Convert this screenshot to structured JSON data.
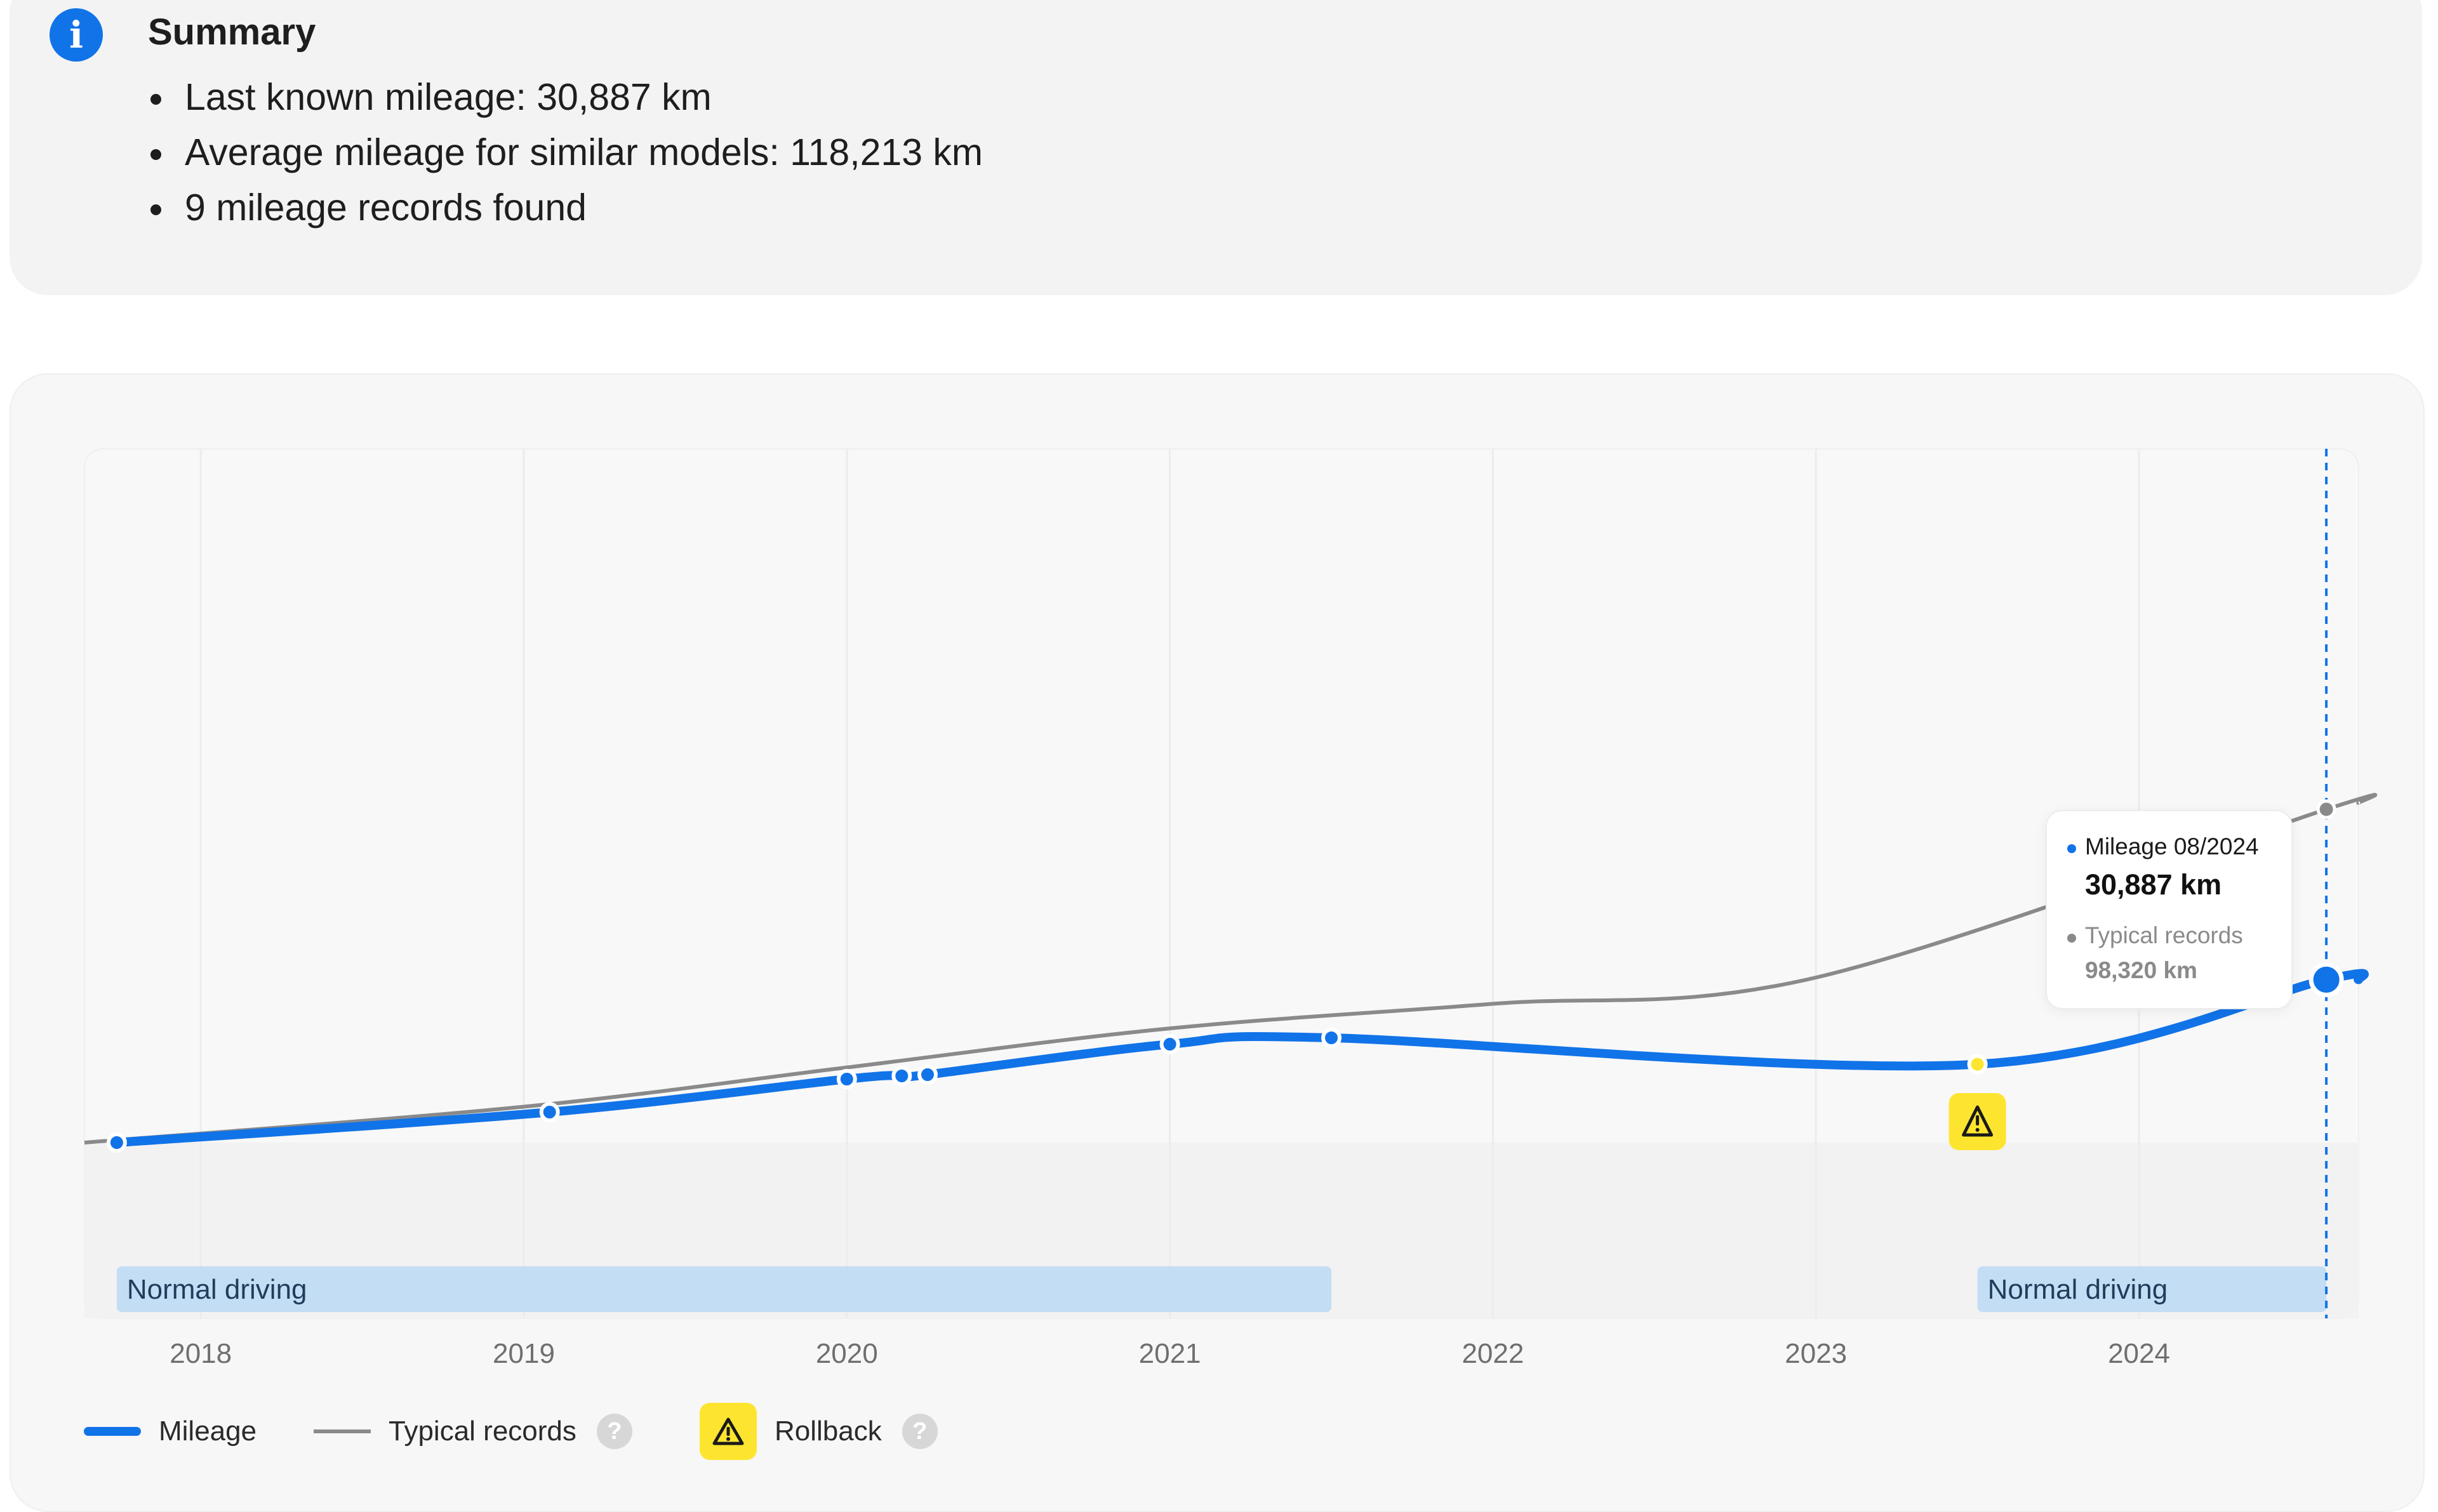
{
  "summary": {
    "title": "Summary",
    "items": [
      "Last known mileage: 30,887 km",
      "Average mileage for similar models: 118,213 km",
      "9 mileage records found"
    ],
    "icon": "info-icon"
  },
  "colors": {
    "mileage": "#1173e8",
    "typical": "#8a8a8a",
    "rollback": "#fde52f",
    "band": "#c3ddf5"
  },
  "chart_data": {
    "type": "line",
    "x_ticks": [
      "2018",
      "2019",
      "2020",
      "2021",
      "2022",
      "2023",
      "2024"
    ],
    "x_range": [
      2017.64,
      2024.68
    ],
    "y_range": [
      0,
      120000
    ],
    "series": [
      {
        "name": "Mileage",
        "points": [
          {
            "x": 2017.74,
            "y": 0
          },
          {
            "x": 2019.08,
            "y": 4200
          },
          {
            "x": 2020.0,
            "y": 9100
          },
          {
            "x": 2020.17,
            "y": 9500
          },
          {
            "x": 2020.25,
            "y": 9700
          },
          {
            "x": 2021.0,
            "y": 13500
          },
          {
            "x": 2021.5,
            "y": 14300
          },
          {
            "x": 2023.5,
            "y": 11000,
            "rollback": true
          },
          {
            "x": 2024.58,
            "y": 30887
          }
        ]
      },
      {
        "name": "Typical records",
        "points": [
          {
            "x": 2017.64,
            "y": 0
          },
          {
            "x": 2019.0,
            "y": 5000
          },
          {
            "x": 2020.0,
            "y": 10600
          },
          {
            "x": 2021.0,
            "y": 17000
          },
          {
            "x": 2022.0,
            "y": 24000
          },
          {
            "x": 2023.0,
            "y": 31500
          },
          {
            "x": 2024.58,
            "y": 98320
          },
          {
            "x": 2024.68,
            "y": 99500
          }
        ]
      }
    ],
    "bands": [
      {
        "label": "Normal driving",
        "x_start": 2017.74,
        "x_end": 2021.5
      },
      {
        "label": "Normal driving",
        "x_start": 2023.5,
        "x_end": 2024.58
      }
    ],
    "rollback_marker_x": 2023.5,
    "highlight_x": 2024.58,
    "grid": true
  },
  "tooltip": {
    "mileage_label": "Mileage 08/2024",
    "mileage_value": "30,887 km",
    "typical_label": "Typical records",
    "typical_value": "98,320 km"
  },
  "legend": {
    "mileage": "Mileage",
    "typical": "Typical records",
    "rollback": "Rollback",
    "help": "?"
  }
}
